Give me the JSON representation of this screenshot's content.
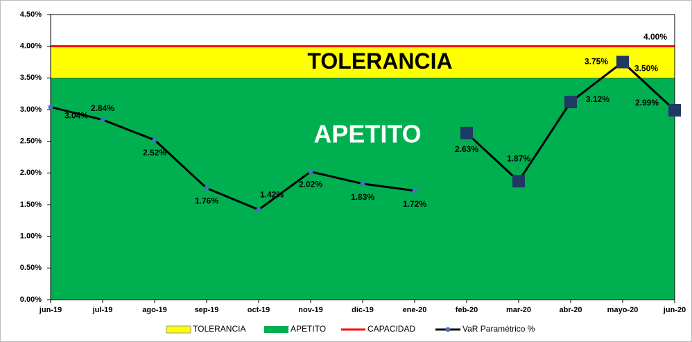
{
  "chart_data": {
    "type": "line",
    "categories": [
      "jun-19",
      "jul-19",
      "ago-19",
      "sep-19",
      "oct-19",
      "nov-19",
      "dic-19",
      "ene-20",
      "feb-20",
      "mar-20",
      "abr-20",
      "mayo-20",
      "jun-20"
    ],
    "bands": [
      {
        "name": "APETITO",
        "color": "#00b050",
        "value": 3.5,
        "value_label": "3.50%"
      },
      {
        "name": "TOLERANCIA",
        "color": "#ffff00",
        "value": 0.5
      }
    ],
    "threshold": {
      "name": "CAPACIDAD",
      "color": "#ff0000",
      "value": 4.0,
      "value_label": "4.00%"
    },
    "series": [
      {
        "name": "VaR Paramétrico %",
        "color": "#000000",
        "marker_color": "#4472c4",
        "marker": "circle",
        "values": [
          3.04,
          2.84,
          2.52,
          1.76,
          1.42,
          2.02,
          1.83,
          1.72,
          null,
          null,
          null,
          null,
          null
        ],
        "value_labels": [
          "3.04%",
          "2.84%",
          "2.52%",
          "1.76%",
          "1.42%",
          "2.02%",
          "1.83%",
          "1.72%",
          null,
          null,
          null,
          null,
          null
        ]
      },
      {
        "color": "#000000",
        "marker_color": "#1f3864",
        "marker": "square",
        "values": [
          null,
          null,
          null,
          null,
          null,
          null,
          null,
          null,
          2.63,
          1.87,
          3.12,
          3.75,
          2.99
        ],
        "value_labels": [
          null,
          null,
          null,
          null,
          null,
          null,
          null,
          null,
          "2.63%",
          "1.87%",
          "3.12%",
          "3.75%",
          "2.99%"
        ]
      }
    ],
    "ylim": [
      0,
      4.5
    ],
    "yticks": [
      {
        "value": 0,
        "label": "0.00%"
      },
      {
        "value": 0.5,
        "label": "0.50%"
      },
      {
        "value": 1,
        "label": "1.00%"
      },
      {
        "value": 1.5,
        "label": "1.50%"
      },
      {
        "value": 2,
        "label": "2.00%"
      },
      {
        "value": 2.5,
        "label": "2.50%"
      },
      {
        "value": 3,
        "label": "3.00%"
      },
      {
        "value": 3.5,
        "label": "3.50%"
      },
      {
        "value": 4,
        "label": "4.00%"
      },
      {
        "value": 4.5,
        "label": "4.50%"
      }
    ]
  }
}
